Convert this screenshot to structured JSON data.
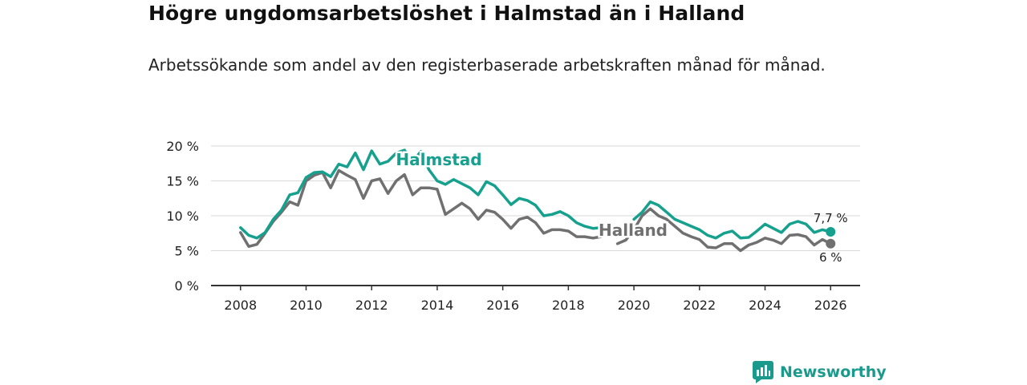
{
  "title": "Högre ungdomsarbetslöshet i Halmstad än i Halland",
  "subtitle": "Arbetssökande som andel av den registerbaserade arbetskraften månad för månad.",
  "brand": "Newsworthy",
  "colors": {
    "halmstad": "#16a08e",
    "halland": "#707070",
    "grid": "#d9d9d9",
    "axis": "#333333",
    "brand": "#1a9a8c"
  },
  "chart_data": {
    "type": "line",
    "title": "Högre ungdomsarbetslöshet i Halmstad än i Halland",
    "xlabel": "",
    "ylabel": "",
    "xlim": [
      2007.1,
      2026.9
    ],
    "ylim": [
      0,
      20
    ],
    "x_ticks": [
      2008,
      2010,
      2012,
      2014,
      2016,
      2018,
      2020,
      2022,
      2024,
      2026
    ],
    "x_tick_labels": [
      "2008",
      "2010",
      "2012",
      "2014",
      "2016",
      "2018",
      "2020",
      "2022",
      "2024",
      "2026"
    ],
    "y_ticks": [
      0,
      5,
      10,
      15,
      20
    ],
    "y_tick_labels": [
      "0 %",
      "5 %",
      "10 %",
      "15 %",
      "20 %"
    ],
    "grid": true,
    "series": [
      {
        "name": "Halmstad",
        "label": "Halmstad",
        "end_label": "7,7 %",
        "end_value": 7.7,
        "x": [
          2008.0,
          2008.25,
          2008.5,
          2008.75,
          2009.0,
          2009.25,
          2009.5,
          2009.75,
          2010.0,
          2010.25,
          2010.5,
          2010.75,
          2011.0,
          2011.25,
          2011.5,
          2011.75,
          2012.0,
          2012.25,
          2012.5,
          2012.75,
          2013.0,
          2013.25,
          2013.5,
          2013.75,
          2014.0,
          2014.25,
          2014.5,
          2014.75,
          2015.0,
          2015.25,
          2015.5,
          2015.75,
          2016.0,
          2016.25,
          2016.5,
          2016.75,
          2017.0,
          2017.25,
          2017.5,
          2017.75,
          2018.0,
          2018.25,
          2018.5,
          2018.75,
          2019.0,
          2019.25,
          2019.5,
          2019.75,
          2020.0,
          2020.25,
          2020.5,
          2020.75,
          2021.0,
          2021.25,
          2021.5,
          2021.75,
          2022.0,
          2022.25,
          2022.5,
          2022.75,
          2023.0,
          2023.25,
          2023.5,
          2023.75,
          2024.0,
          2024.25,
          2024.5,
          2024.75,
          2025.0,
          2025.25,
          2025.5,
          2025.75,
          2026.0
        ],
        "values": [
          8.3,
          7.2,
          6.8,
          7.6,
          9.5,
          10.8,
          13.0,
          13.3,
          15.5,
          16.2,
          16.3,
          15.6,
          17.4,
          17.0,
          19.0,
          16.6,
          19.3,
          17.4,
          17.8,
          19.0,
          19.4,
          17.8,
          19.2,
          16.6,
          15.0,
          14.5,
          15.2,
          14.6,
          14.0,
          13.0,
          14.9,
          14.3,
          13.0,
          11.6,
          12.5,
          12.2,
          11.5,
          10.0,
          10.2,
          10.6,
          10.0,
          9.0,
          8.5,
          8.2,
          8.3,
          null,
          null,
          null,
          9.5,
          10.5,
          12.0,
          11.5,
          10.5,
          9.5,
          9.0,
          8.5,
          8.0,
          7.2,
          6.8,
          7.5,
          7.8,
          6.8,
          6.9,
          7.8,
          8.8,
          8.2,
          7.6,
          8.8,
          9.2,
          8.8,
          7.6,
          8.0,
          7.7
        ]
      },
      {
        "name": "Halland",
        "label": "Halland",
        "end_label": "6 %",
        "end_value": 6.0,
        "x": [
          2008.0,
          2008.25,
          2008.5,
          2008.75,
          2009.0,
          2009.25,
          2009.5,
          2009.75,
          2010.0,
          2010.25,
          2010.5,
          2010.75,
          2011.0,
          2011.25,
          2011.5,
          2011.75,
          2012.0,
          2012.25,
          2012.5,
          2012.75,
          2013.0,
          2013.25,
          2013.5,
          2013.75,
          2014.0,
          2014.25,
          2014.5,
          2014.75,
          2015.0,
          2015.25,
          2015.5,
          2015.75,
          2016.0,
          2016.25,
          2016.5,
          2016.75,
          2017.0,
          2017.25,
          2017.5,
          2017.75,
          2018.0,
          2018.25,
          2018.5,
          2018.75,
          2019.0,
          2019.25,
          2019.5,
          2019.75,
          2020.0,
          2020.25,
          2020.5,
          2020.75,
          2021.0,
          2021.25,
          2021.5,
          2021.75,
          2022.0,
          2022.25,
          2022.5,
          2022.75,
          2023.0,
          2023.25,
          2023.5,
          2023.75,
          2024.0,
          2024.25,
          2024.5,
          2024.75,
          2025.0,
          2025.25,
          2025.5,
          2025.75,
          2026.0
        ],
        "values": [
          7.6,
          5.6,
          5.9,
          7.5,
          9.2,
          10.5,
          12.0,
          11.5,
          15.0,
          15.8,
          16.2,
          14.0,
          16.5,
          15.8,
          15.2,
          12.5,
          15.0,
          15.3,
          13.2,
          15.0,
          15.9,
          13.0,
          14.0,
          14.0,
          13.8,
          10.2,
          11.0,
          11.8,
          11.0,
          9.5,
          10.8,
          10.5,
          9.5,
          8.2,
          9.5,
          9.8,
          9.0,
          7.5,
          8.0,
          8.0,
          7.8,
          7.0,
          7.0,
          6.8,
          7.0,
          null,
          6.0,
          6.5,
          8.0,
          10.0,
          11.0,
          10.0,
          9.5,
          8.5,
          7.5,
          7.0,
          6.6,
          5.5,
          5.4,
          6.0,
          6.0,
          5.0,
          5.8,
          6.2,
          6.8,
          6.5,
          6.0,
          7.2,
          7.3,
          7.0,
          5.8,
          6.6,
          6.0
        ]
      }
    ]
  }
}
